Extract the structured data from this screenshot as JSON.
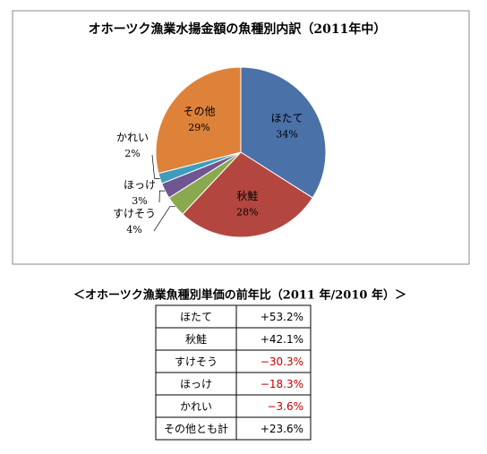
{
  "chart_data": {
    "type": "pie",
    "title": "オホーツク漁業水揚金額の魚種別内訳（2011年中）",
    "categories": [
      "ほたて",
      "秋鮭",
      "すけそう",
      "ほっけ",
      "かれい",
      "その他"
    ],
    "values": [
      34,
      28,
      4,
      3,
      2,
      29
    ],
    "value_labels": [
      "34%",
      "28%",
      "4%",
      "3%",
      "2%",
      "29%"
    ],
    "colors": [
      "#4a71a8",
      "#b3473f",
      "#8aa84e",
      "#6f5592",
      "#3f9dbc",
      "#de8239"
    ]
  },
  "table": {
    "title": "＜オホーツク漁業魚種別単価の前年比（2011 年/2010 年）＞",
    "rows": [
      [
        "ほたて",
        "+53.2%"
      ],
      [
        "秋鮭",
        "+42.1%"
      ],
      [
        "すけそう",
        "−30.3%"
      ],
      [
        "ほっけ",
        "−18.3%"
      ],
      [
        "かれい",
        "−3.6%"
      ],
      [
        "その他とも計",
        "+23.6%"
      ]
    ],
    "highlight_rows": [
      2,
      3,
      4
    ],
    "highlight_color": "#c00000"
  }
}
